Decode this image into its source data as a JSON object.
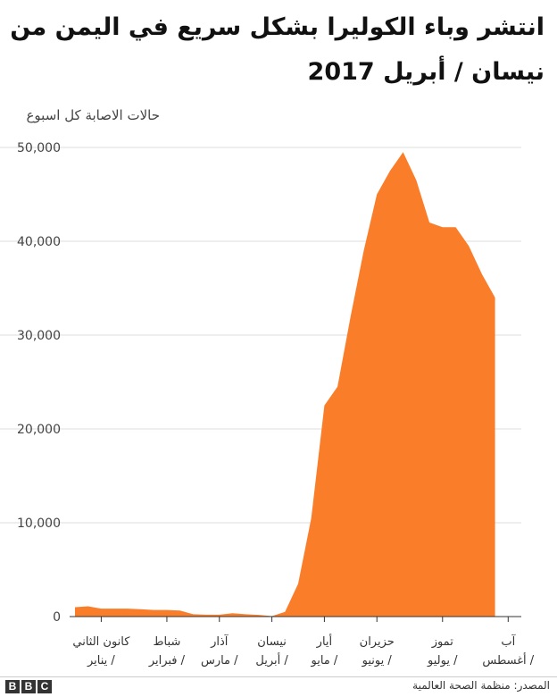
{
  "title": "انتشر وباء الكوليرا بشكل سريع في اليمن من نيسان / أبريل 2017",
  "ylabel": "حالات الاصابة كل اسبوع",
  "source": "المصدر: منظمة الصحة العالمية",
  "brand": [
    "B",
    "B",
    "C"
  ],
  "colors": {
    "area": "#FA7D2A",
    "grid": "#dddddd",
    "axis": "#333333"
  },
  "chart_data": {
    "type": "area",
    "title": "انتشر وباء الكوليرا بشكل سريع في اليمن من نيسان / أبريل 2017",
    "ylabel": "حالات الاصابة كل اسبوع",
    "xlabel": "",
    "ylim": [
      0,
      50000
    ],
    "yticks": [
      0,
      10000,
      20000,
      30000,
      40000,
      50000
    ],
    "ytick_labels": [
      "0",
      "10,000",
      "20,000",
      "30,000",
      "40,000",
      "50,000"
    ],
    "xlim": [
      1,
      35
    ],
    "months": [
      {
        "line1": "كانون الثاني",
        "line2": "/ يناير",
        "week": 3
      },
      {
        "line1": "شباط",
        "line2": "/ فبراير",
        "week": 8
      },
      {
        "line1": "آذار",
        "line2": "/ مارس",
        "week": 12
      },
      {
        "line1": "نيسان",
        "line2": "/ أبريل",
        "week": 16
      },
      {
        "line1": "أيار",
        "line2": "/ مايو",
        "week": 20
      },
      {
        "line1": "حزيران",
        "line2": "/ يونيو",
        "week": 24
      },
      {
        "line1": "تموز",
        "line2": "/ يوليو",
        "week": 29
      },
      {
        "line1": "آب",
        "line2": "/ أغسطس",
        "week": 34
      }
    ],
    "grid": true,
    "legend": "none",
    "series": [
      {
        "x": [
          1,
          2,
          3,
          4,
          5,
          6,
          7,
          8,
          9,
          10,
          11,
          12,
          13,
          14,
          15,
          16,
          17,
          18,
          19,
          20,
          21,
          22,
          23,
          24,
          25,
          26,
          27,
          28,
          29,
          30,
          31,
          32,
          33,
          34,
          35
        ],
        "y": [
          1000,
          1100,
          850,
          850,
          850,
          780,
          700,
          700,
          650,
          250,
          200,
          200,
          350,
          250,
          180,
          50,
          500,
          3500,
          10500,
          22500,
          24500,
          32000,
          39000,
          45000,
          47500,
          49500,
          46500,
          42000,
          41500,
          41500,
          39500,
          36500,
          34000,
          null,
          null
        ]
      }
    ]
  }
}
